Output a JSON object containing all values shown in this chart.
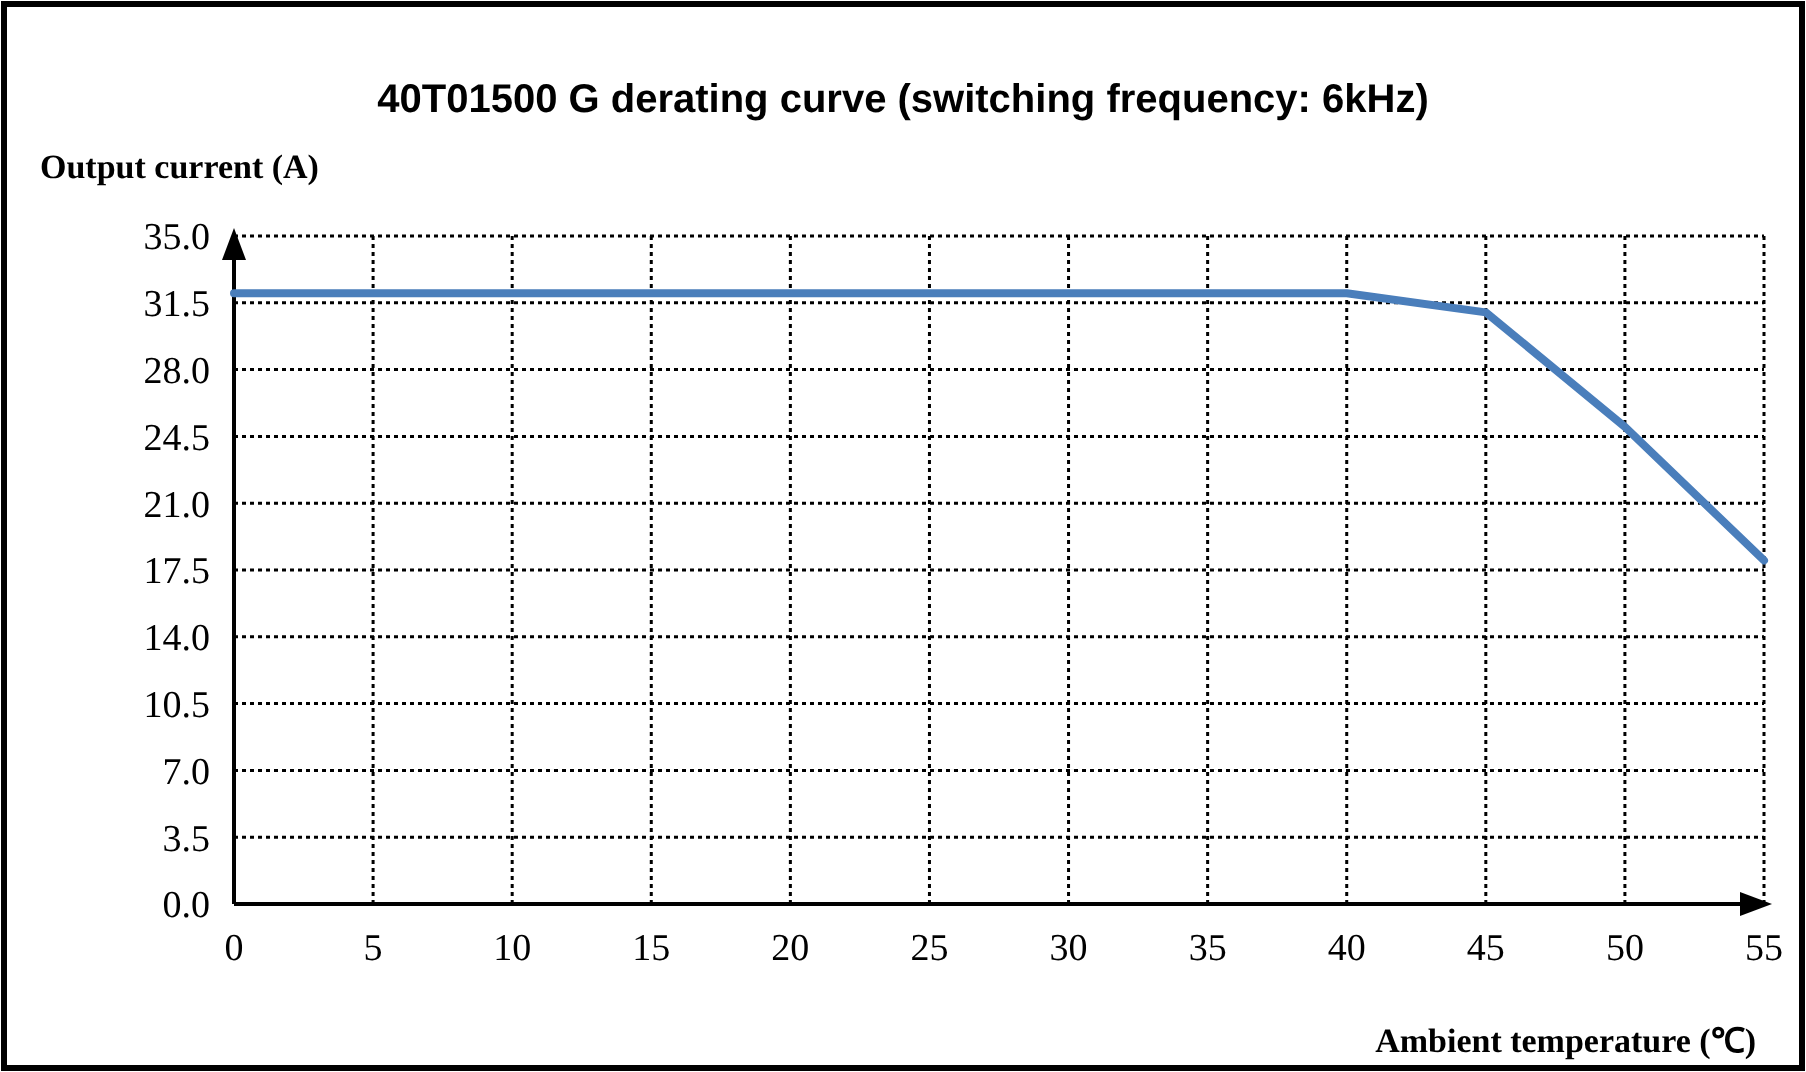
{
  "chart_data": {
    "type": "line",
    "title": "40T01500 G derating curve (switching frequency: 6kHz)",
    "ylabel": "Output current (A)",
    "xlabel": "Ambient temperature (℃)",
    "x": [
      0,
      40,
      45,
      50,
      55
    ],
    "series": [
      {
        "color": "#4a7ebb",
        "values": [
          32,
          32,
          31,
          25,
          18
        ]
      }
    ],
    "xlim": [
      0,
      55
    ],
    "xticks": [
      0,
      5,
      10,
      15,
      20,
      25,
      30,
      35,
      40,
      45,
      50,
      55
    ],
    "ylim": [
      0,
      35
    ],
    "yticks": [
      {
        "value": 0,
        "label": "0.0"
      },
      {
        "value": 3.5,
        "label": "3.5"
      },
      {
        "value": 7,
        "label": "7.0"
      },
      {
        "value": 10.5,
        "label": "10.5"
      },
      {
        "value": 14,
        "label": "14.0"
      },
      {
        "value": 17.5,
        "label": "17.5"
      },
      {
        "value": 21,
        "label": "21.0"
      },
      {
        "value": 24.5,
        "label": "24.5"
      },
      {
        "value": 28,
        "label": "28.0"
      },
      {
        "value": 31.5,
        "label": "31.5"
      },
      {
        "value": 35,
        "label": "35.0"
      }
    ],
    "grid": true,
    "marker": "none",
    "line_style": "solid"
  }
}
